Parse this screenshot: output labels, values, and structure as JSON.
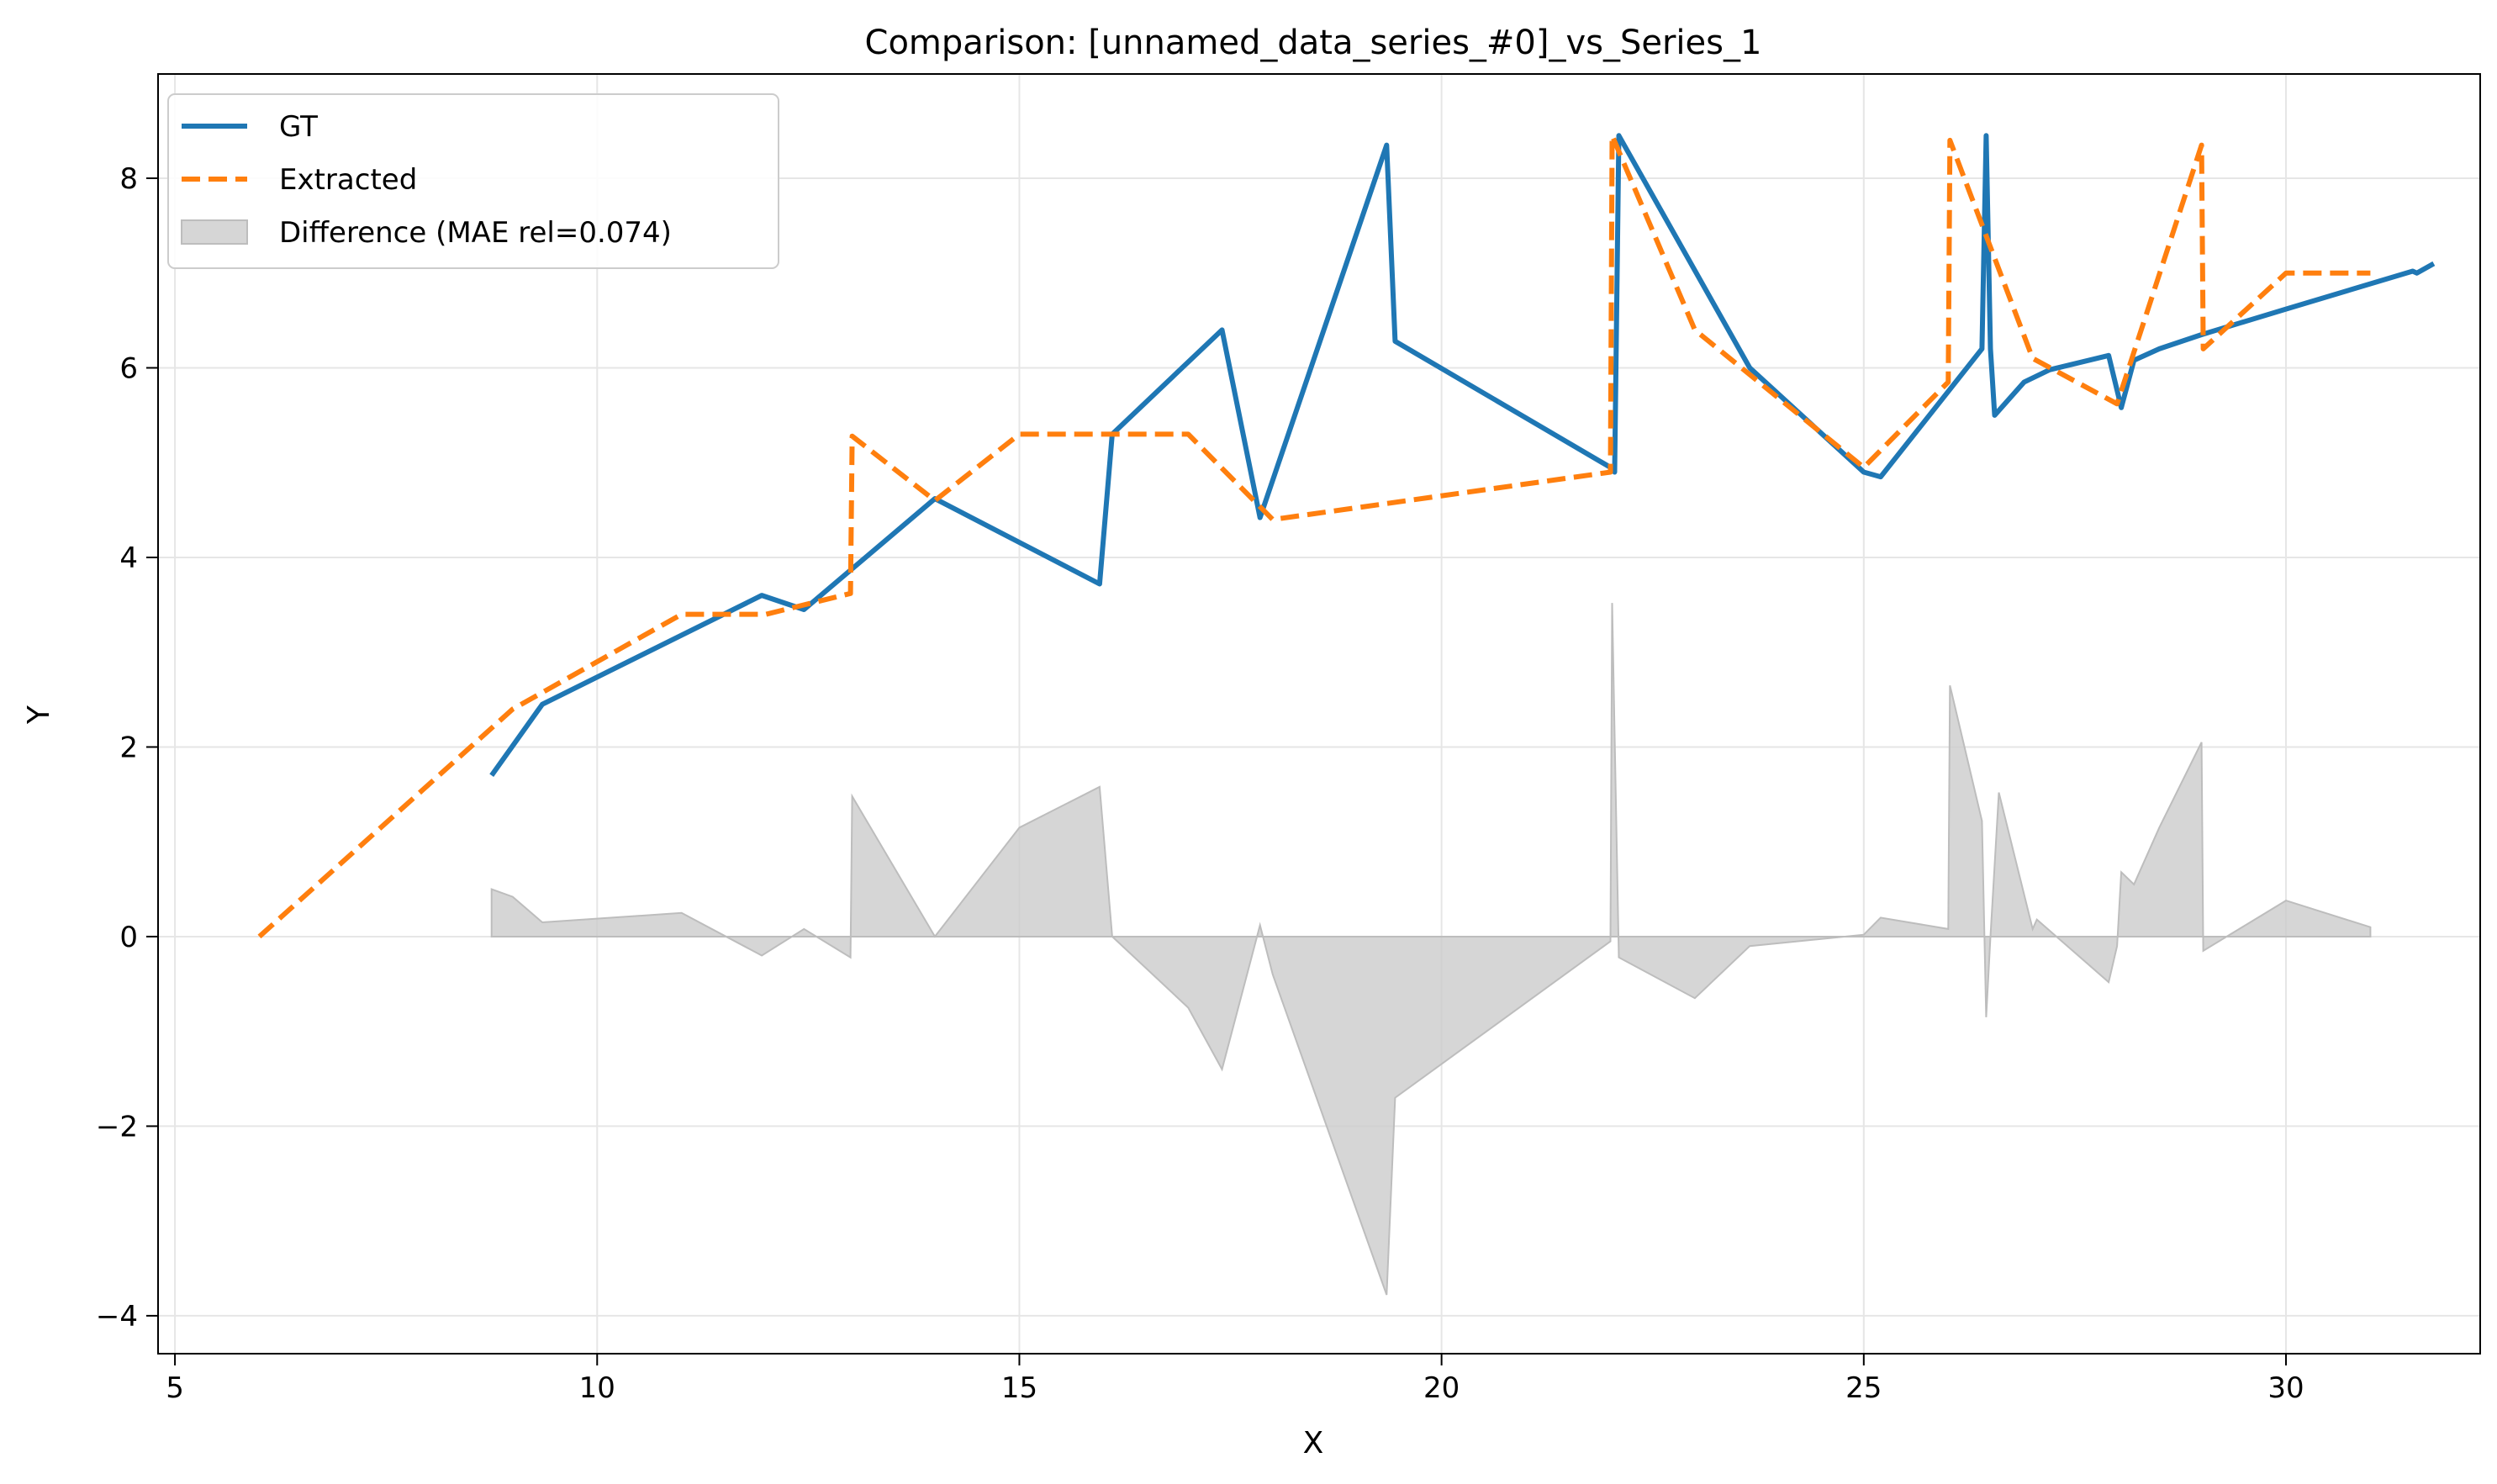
{
  "chart_data": {
    "type": "line",
    "title": "Comparison: [unnamed_data_series_#0]_vs_Series_1",
    "xlabel": "X",
    "ylabel": "Y",
    "xlim": [
      4.8,
      32.3
    ],
    "ylim": [
      -4.4,
      9.1
    ],
    "xticks": [
      5,
      10,
      15,
      20,
      25,
      30
    ],
    "yticks": [
      -4,
      -2,
      0,
      2,
      4,
      6,
      8
    ],
    "grid": true,
    "legend_position": "top-left",
    "series": [
      {
        "name": "GT",
        "color": "#1f77b4",
        "style": "solid",
        "points": [
          [
            8.75,
            1.7
          ],
          [
            9.35,
            2.45
          ],
          [
            11.95,
            3.6
          ],
          [
            12.45,
            3.45
          ],
          [
            14.0,
            4.62
          ],
          [
            15.95,
            3.72
          ],
          [
            16.1,
            5.3
          ],
          [
            17.4,
            6.4
          ],
          [
            17.85,
            4.42
          ],
          [
            19.35,
            8.35
          ],
          [
            19.45,
            6.28
          ],
          [
            22.0,
            4.95
          ],
          [
            22.05,
            4.9
          ],
          [
            22.1,
            8.45
          ],
          [
            23.65,
            6.0
          ],
          [
            25.0,
            4.9
          ],
          [
            25.2,
            4.85
          ],
          [
            26.4,
            6.2
          ],
          [
            26.45,
            8.45
          ],
          [
            26.5,
            6.2
          ],
          [
            26.55,
            5.5
          ],
          [
            26.9,
            5.85
          ],
          [
            27.2,
            5.98
          ],
          [
            27.9,
            6.13
          ],
          [
            28.05,
            5.58
          ],
          [
            28.2,
            6.08
          ],
          [
            28.5,
            6.2
          ],
          [
            29.0,
            6.35
          ],
          [
            30.0,
            6.62
          ],
          [
            31.5,
            7.02
          ],
          [
            31.55,
            7.0
          ],
          [
            31.75,
            7.1
          ]
        ]
      },
      {
        "name": "Extracted",
        "color": "#ff7f0e",
        "style": "dashed",
        "points": [
          [
            6.0,
            0.0
          ],
          [
            9.0,
            2.4
          ],
          [
            11.0,
            3.4
          ],
          [
            12.0,
            3.4
          ],
          [
            13.0,
            3.62
          ],
          [
            13.02,
            5.28
          ],
          [
            14.0,
            4.6
          ],
          [
            15.0,
            5.3
          ],
          [
            17.0,
            5.3
          ],
          [
            18.0,
            4.4
          ],
          [
            22.0,
            4.9
          ],
          [
            22.02,
            8.45
          ],
          [
            23.0,
            6.4
          ],
          [
            25.0,
            4.95
          ],
          [
            26.0,
            5.85
          ],
          [
            26.02,
            8.4
          ],
          [
            27.0,
            6.1
          ],
          [
            28.0,
            5.62
          ],
          [
            29.0,
            8.35
          ],
          [
            29.02,
            6.2
          ],
          [
            30.0,
            7.0
          ],
          [
            31.0,
            7.0
          ]
        ]
      },
      {
        "name": "Difference (MAE rel=0.074)",
        "color": "#cccccc",
        "style": "fill",
        "points": [
          [
            8.75,
            0.5
          ],
          [
            9.0,
            0.42
          ],
          [
            9.35,
            0.15
          ],
          [
            11.0,
            0.25
          ],
          [
            11.95,
            -0.2
          ],
          [
            12.45,
            0.08
          ],
          [
            13.0,
            -0.22
          ],
          [
            13.02,
            1.48
          ],
          [
            14.0,
            0.0
          ],
          [
            15.0,
            1.15
          ],
          [
            15.95,
            1.58
          ],
          [
            16.1,
            0.0
          ],
          [
            17.0,
            -0.75
          ],
          [
            17.4,
            -1.4
          ],
          [
            17.85,
            0.12
          ],
          [
            18.0,
            -0.4
          ],
          [
            19.35,
            -3.78
          ],
          [
            19.45,
            -1.7
          ],
          [
            22.0,
            -0.05
          ],
          [
            22.02,
            3.52
          ],
          [
            22.1,
            -0.22
          ],
          [
            23.0,
            -0.65
          ],
          [
            23.65,
            -0.1
          ],
          [
            25.0,
            0.02
          ],
          [
            25.2,
            0.2
          ],
          [
            26.0,
            0.08
          ],
          [
            26.02,
            2.65
          ],
          [
            26.4,
            1.22
          ],
          [
            26.45,
            -0.85
          ],
          [
            26.5,
            0.0
          ],
          [
            26.6,
            1.52
          ],
          [
            27.0,
            0.08
          ],
          [
            27.05,
            0.18
          ],
          [
            27.9,
            -0.48
          ],
          [
            28.0,
            -0.1
          ],
          [
            28.05,
            0.68
          ],
          [
            28.2,
            0.55
          ],
          [
            28.5,
            1.15
          ],
          [
            29.0,
            2.05
          ],
          [
            29.02,
            -0.15
          ],
          [
            30.0,
            0.38
          ],
          [
            31.0,
            0.1
          ]
        ]
      }
    ]
  }
}
